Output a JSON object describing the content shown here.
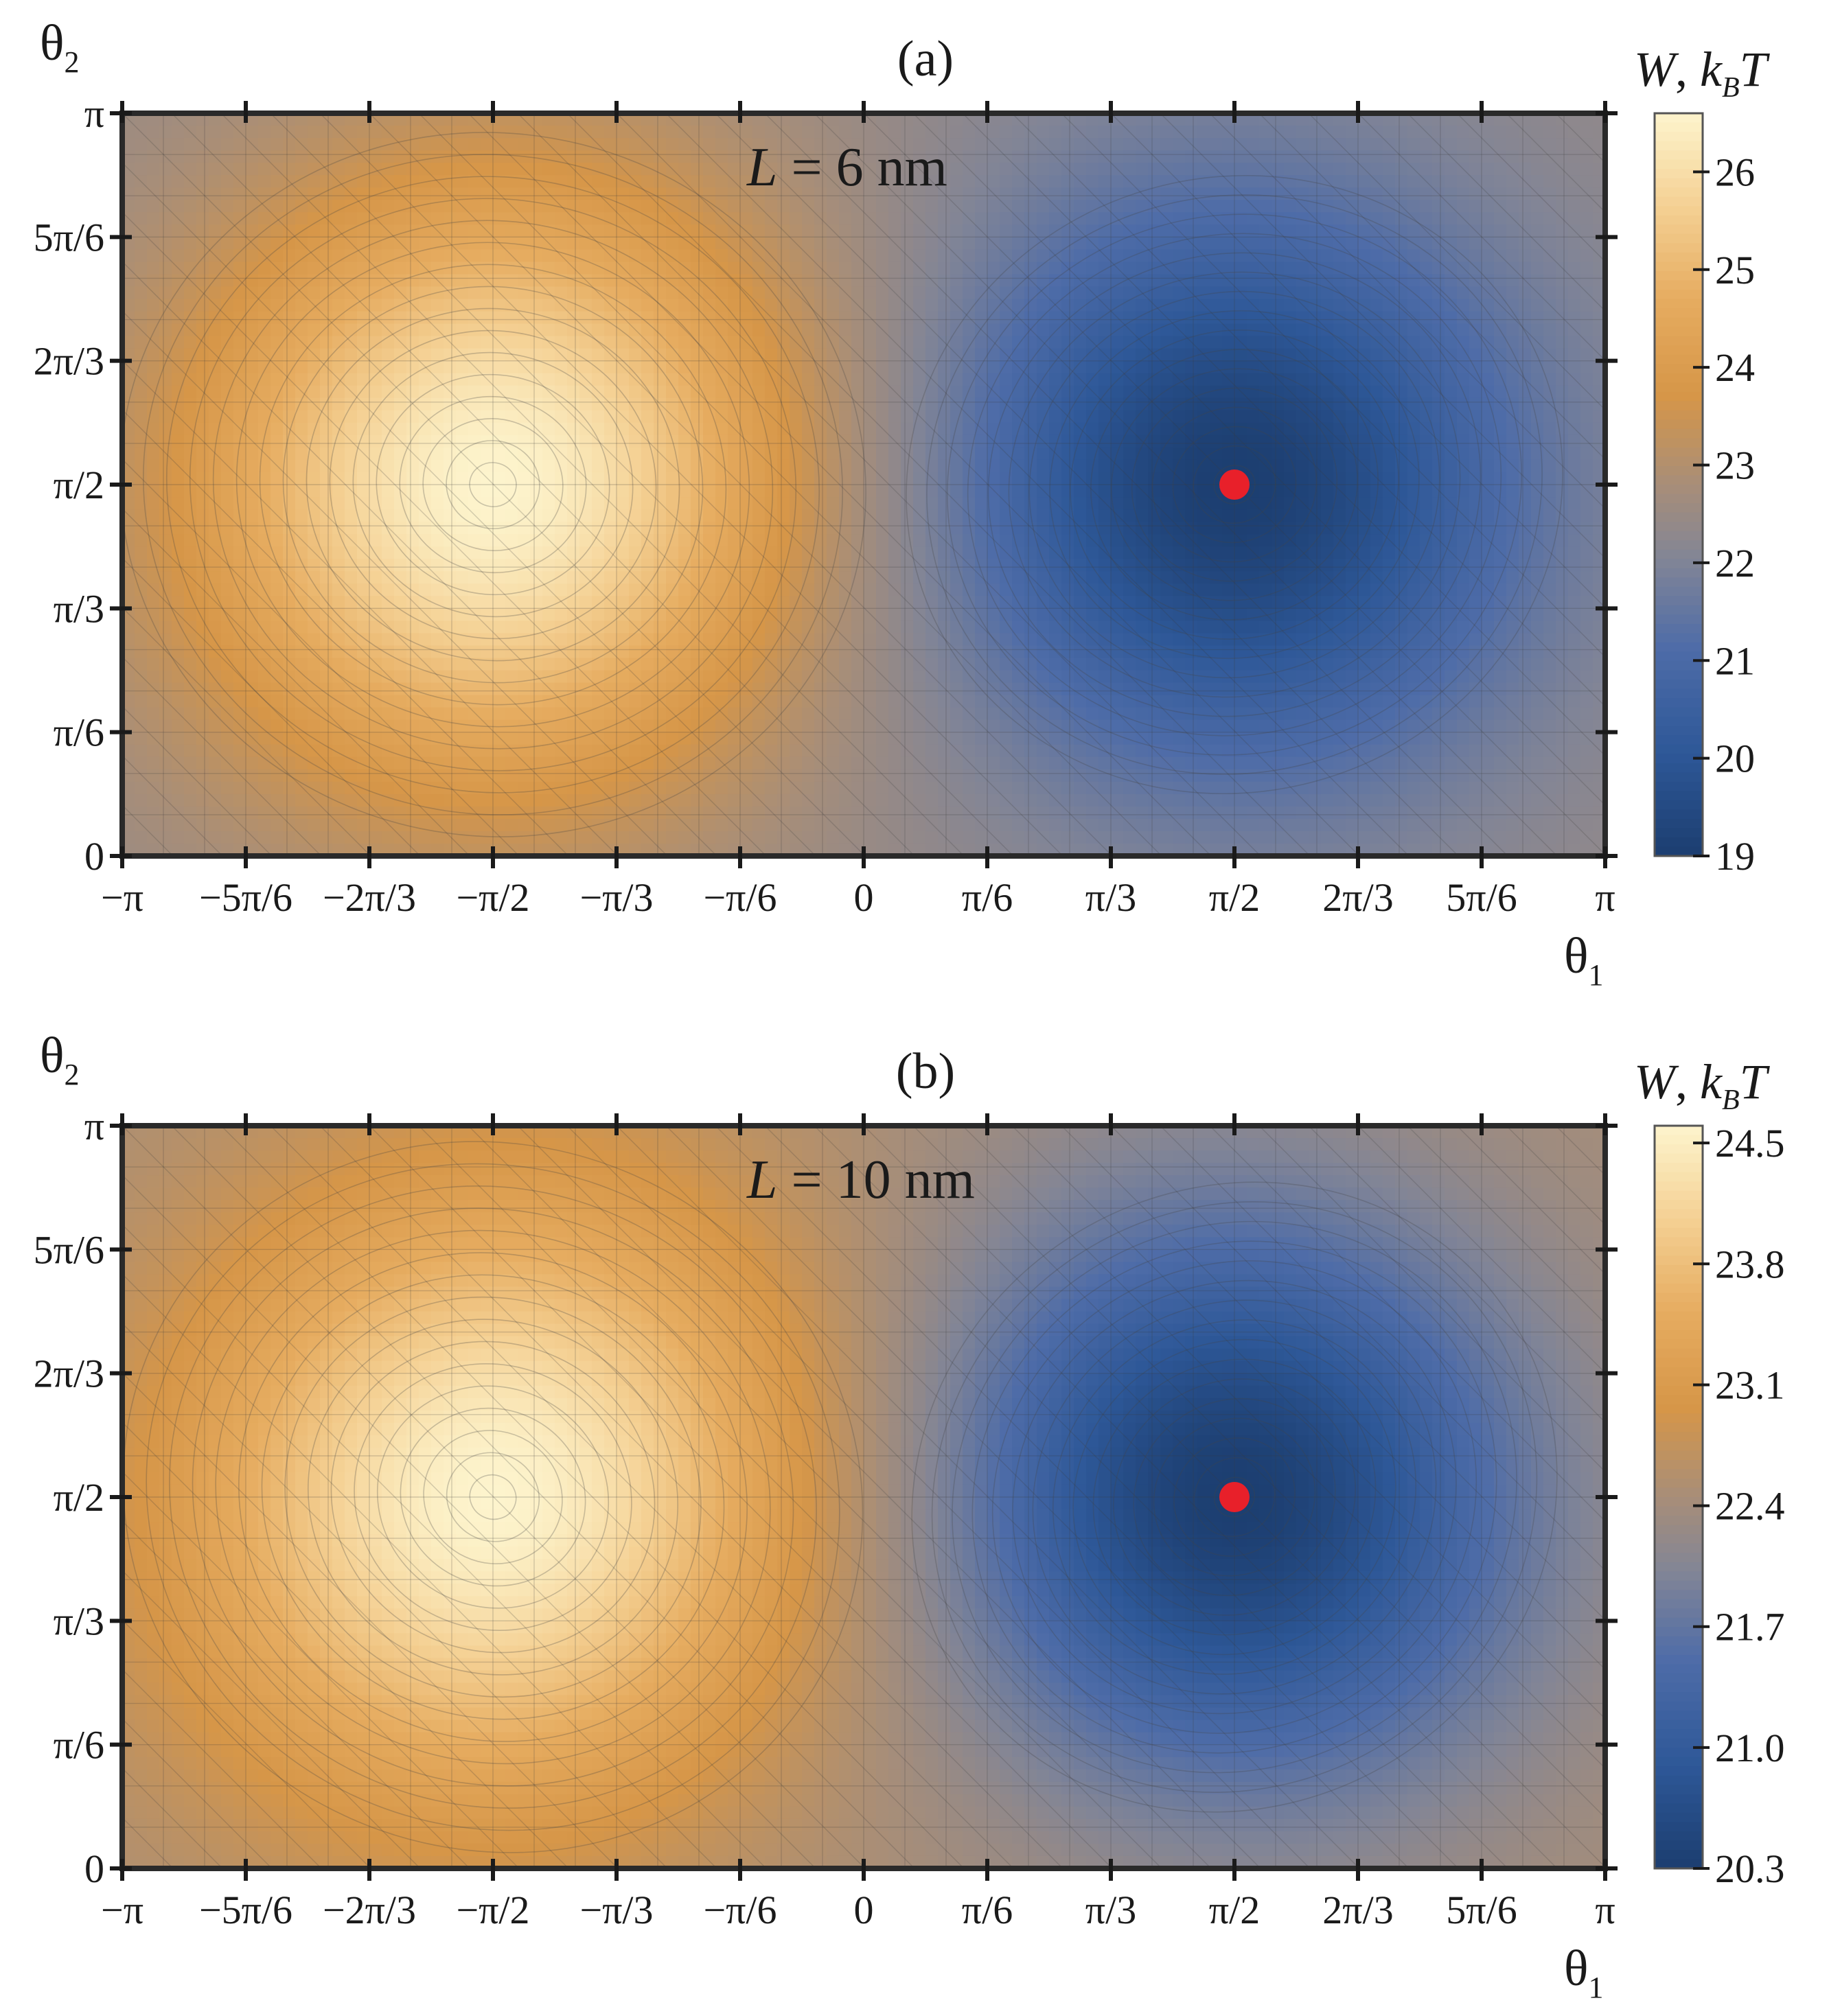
{
  "chart_data": [
    {
      "type": "heatmap",
      "panel_label": "(a)",
      "annotation": {
        "var": "L",
        "rest": " = 6 nm"
      },
      "xlabel": {
        "base": "θ",
        "sub": "1"
      },
      "ylabel": {
        "base": "θ",
        "sub": "2"
      },
      "x_range_over_pi": [
        -1,
        1
      ],
      "y_range_over_pi": [
        0,
        1
      ],
      "x_ticks": [
        "−π",
        "−5π/6",
        "−2π/3",
        "−π/2",
        "−π/3",
        "−π/6",
        "0",
        "π/6",
        "π/3",
        "π/2",
        "2π/3",
        "5π/6",
        "π"
      ],
      "y_ticks": [
        "0",
        "π/6",
        "π/3",
        "π/2",
        "2π/3",
        "5π/6",
        "π"
      ],
      "colorbar": {
        "title": {
          "w": "W",
          "k": "k",
          "kSub": "B",
          "t": "T"
        },
        "range": [
          19,
          26.6
        ],
        "ticks": [
          "19",
          "20",
          "21",
          "22",
          "23",
          "24",
          "25",
          "26"
        ]
      },
      "surface": {
        "offset": 22.4,
        "max_point": {
          "theta1_over_pi": -0.5,
          "theta2_over_pi": 0.5,
          "value": 26.6
        },
        "min_point": {
          "theta1_over_pi": 0.5,
          "theta2_over_pi": 0.5,
          "value": 19.0
        }
      },
      "marker": {
        "theta1": "π/2",
        "theta2": "π/2",
        "color": "#e8202a"
      }
    },
    {
      "type": "heatmap",
      "panel_label": "(b)",
      "annotation": {
        "var": "L",
        "rest": " = 10 nm"
      },
      "xlabel": {
        "base": "θ",
        "sub": "1"
      },
      "ylabel": {
        "base": "θ",
        "sub": "2"
      },
      "x_range_over_pi": [
        -1,
        1
      ],
      "y_range_over_pi": [
        0,
        1
      ],
      "x_ticks": [
        "−π",
        "−5π/6",
        "−2π/3",
        "−π/2",
        "−π/3",
        "−π/6",
        "0",
        "π/6",
        "π/3",
        "π/2",
        "2π/3",
        "5π/6",
        "π"
      ],
      "y_ticks": [
        "0",
        "π/6",
        "π/3",
        "π/2",
        "2π/3",
        "5π/6",
        "π"
      ],
      "colorbar": {
        "title": {
          "w": "W",
          "k": "k",
          "kSub": "B",
          "t": "T"
        },
        "range": [
          20.3,
          24.6
        ],
        "ticks": [
          "20.3",
          "21.0",
          "21.7",
          "22.4",
          "23.1",
          "23.8",
          "24.5"
        ]
      },
      "surface": {
        "offset": 22.45,
        "max_point": {
          "theta1_over_pi": -0.5,
          "theta2_over_pi": 0.5,
          "value": 24.6
        },
        "min_point": {
          "theta1_over_pi": 0.5,
          "theta2_over_pi": 0.5,
          "value": 20.3
        }
      },
      "marker": {
        "theta1": "π/2",
        "theta2": "π/2",
        "color": "#e8202a"
      }
    }
  ]
}
